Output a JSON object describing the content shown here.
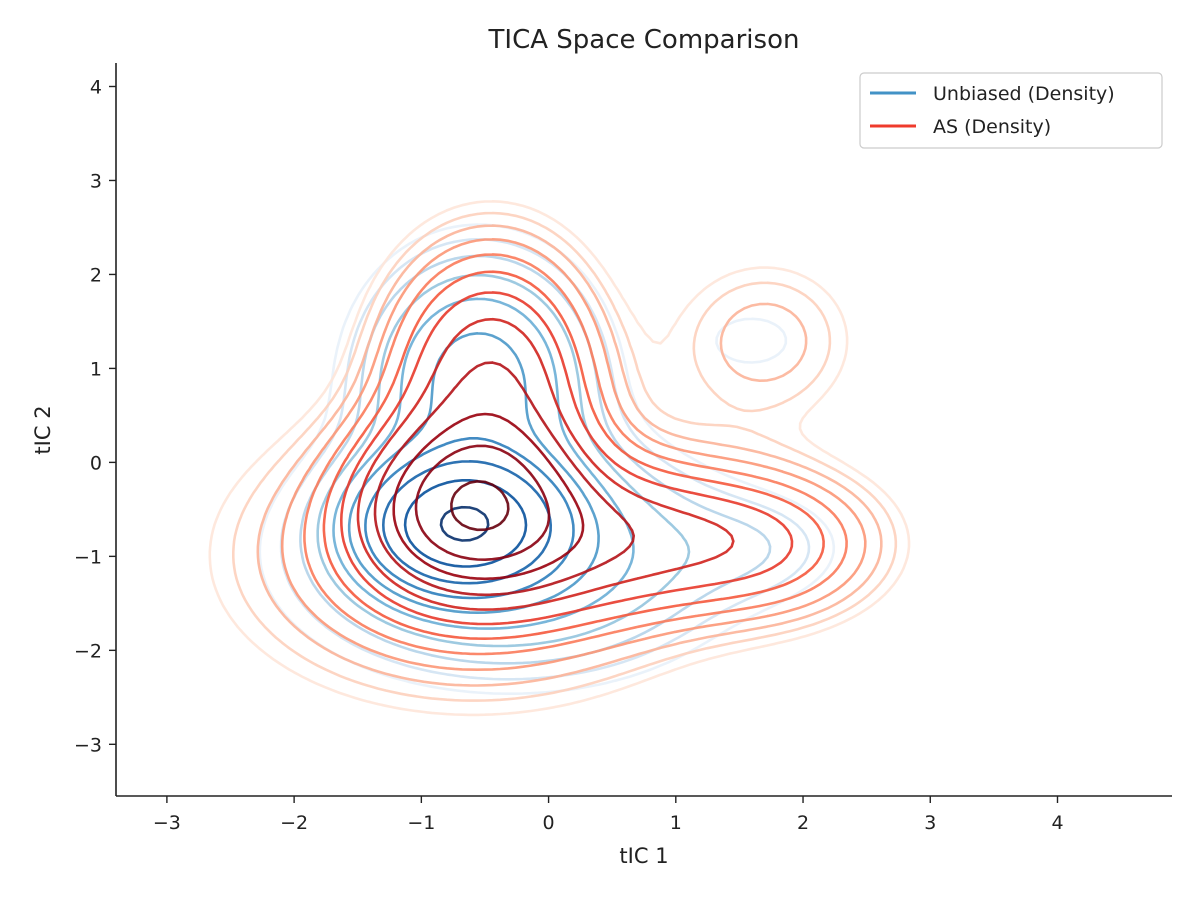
{
  "chart_data": {
    "type": "contour",
    "title": "TICA Space Comparison",
    "xlabel": "tIC 1",
    "ylabel": "tIC 2",
    "xlim": [
      -3.4,
      4.9
    ],
    "ylim": [
      -3.55,
      4.25
    ],
    "xticks": [
      -3,
      -2,
      -1,
      0,
      1,
      2,
      3,
      4
    ],
    "yticks": [
      -3,
      -2,
      -1,
      0,
      1,
      2,
      3,
      4
    ],
    "grid": false,
    "legend_position": "top-right",
    "series": [
      {
        "name": "Unbiased (Density)",
        "legend_color": "#4292c6",
        "colormap": "Blues",
        "peak": [
          -0.68,
          -0.65
        ],
        "components": [
          {
            "center": [
              -0.68,
              -0.65
            ],
            "sigma": [
              0.45,
              0.42
            ],
            "weight": 1.0
          },
          {
            "center": [
              -0.55,
              0.9
            ],
            "sigma": [
              0.55,
              0.8
            ],
            "weight": 0.3
          },
          {
            "center": [
              -0.3,
              -1.0
            ],
            "sigma": [
              1.0,
              0.75
            ],
            "weight": 0.25
          },
          {
            "center": [
              1.6,
              1.3
            ],
            "sigma": [
              0.35,
              0.3
            ],
            "weight": 0.05
          },
          {
            "center": [
              1.7,
              -0.9
            ],
            "sigma": [
              0.5,
              0.4
            ],
            "weight": 0.05
          }
        ],
        "level_colors": [
          "#e8f1fa",
          "#d2e3f3",
          "#b4d3e9",
          "#93c4de",
          "#6aaed6",
          "#4a98c9",
          "#2e7ebc",
          "#1764ab",
          "#08519c",
          "#08306b"
        ]
      },
      {
        "name": "AS (Density)",
        "legend_color": "#ef3b2c",
        "colormap": "Reds",
        "peak": [
          -0.6,
          -0.45
        ],
        "components": [
          {
            "center": [
              -0.6,
              -0.45
            ],
            "sigma": [
              0.5,
              0.55
            ],
            "weight": 1.0
          },
          {
            "center": [
              -0.45,
              0.9
            ],
            "sigma": [
              0.5,
              0.85
            ],
            "weight": 0.5
          },
          {
            "center": [
              0.6,
              -0.8
            ],
            "sigma": [
              0.9,
              0.5
            ],
            "weight": 0.35
          },
          {
            "center": [
              1.8,
              -0.9
            ],
            "sigma": [
              0.55,
              0.5
            ],
            "weight": 0.15
          },
          {
            "center": [
              1.7,
              1.3
            ],
            "sigma": [
              0.5,
              0.6
            ],
            "weight": 0.1
          },
          {
            "center": [
              -0.6,
              -1.0
            ],
            "sigma": [
              1.1,
              0.9
            ],
            "weight": 0.25
          }
        ],
        "level_colors": [
          "#fee5d9",
          "#fdd0bc",
          "#fcb499",
          "#fc9777",
          "#fb7b5b",
          "#f5593d",
          "#e83a2b",
          "#d0231e",
          "#b41318",
          "#99000d",
          "#8a0010",
          "#67000d"
        ]
      }
    ]
  }
}
